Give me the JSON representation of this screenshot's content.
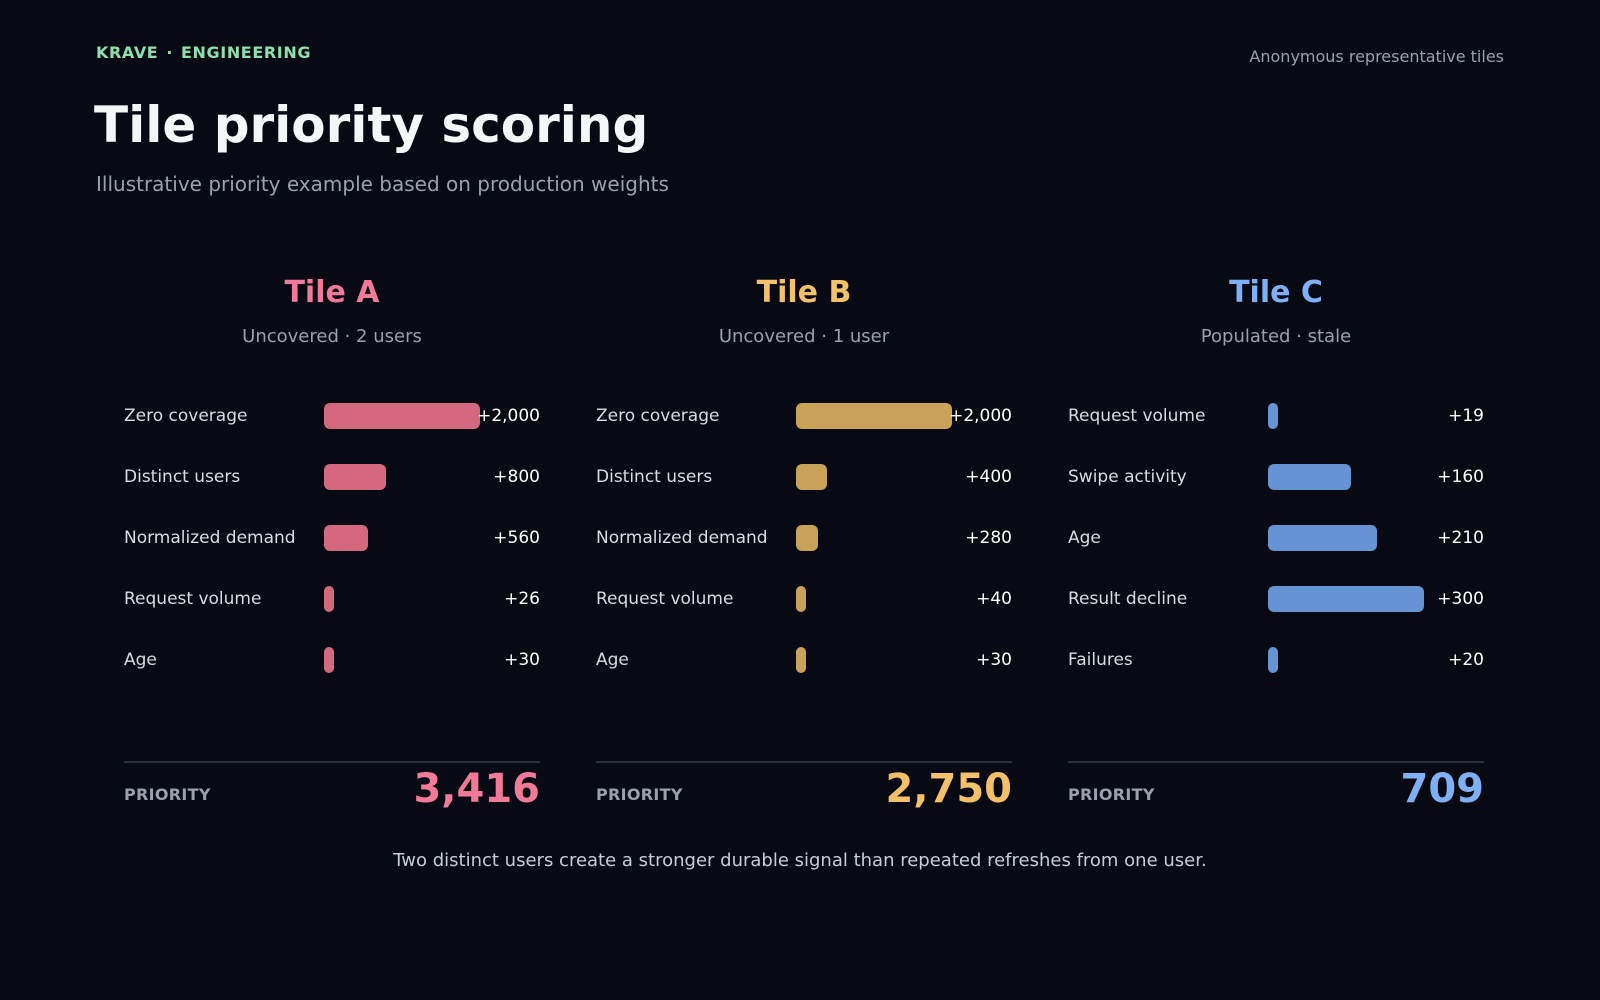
{
  "header": {
    "brand_left": "KRAVE",
    "brand_sep": "·",
    "brand_right": "ENGINEERING",
    "note": "Anonymous representative tiles",
    "title": "Tile priority scoring",
    "subtitle": "Illustrative priority example based on production weights"
  },
  "chart_data": [
    {
      "type": "bar",
      "title": "Tile A",
      "subtitle": "Uncovered · 2 users",
      "color": "#f27a99",
      "bar_color": "#d4687f",
      "categories": [
        "Zero coverage",
        "Distinct users",
        "Normalized demand",
        "Request volume",
        "Age"
      ],
      "values": [
        2000,
        800,
        560,
        26,
        30
      ],
      "value_labels": [
        "+2,000",
        "+800",
        "+560",
        "+26",
        "+30"
      ],
      "xlim": [
        0,
        2000
      ],
      "priority_label": "PRIORITY",
      "priority": "3,416"
    },
    {
      "type": "bar",
      "title": "Tile B",
      "subtitle": "Uncovered · 1 user",
      "color": "#f5c06a",
      "bar_color": "#c9a157",
      "categories": [
        "Zero coverage",
        "Distinct users",
        "Normalized demand",
        "Request volume",
        "Age"
      ],
      "values": [
        2000,
        400,
        280,
        40,
        30
      ],
      "value_labels": [
        "+2,000",
        "+400",
        "+280",
        "+40",
        "+30"
      ],
      "xlim": [
        0,
        2000
      ],
      "priority_label": "PRIORITY",
      "priority": "2,750"
    },
    {
      "type": "bar",
      "title": "Tile C",
      "subtitle": "Populated · stale",
      "color": "#7fb0f5",
      "bar_color": "#6693d4",
      "categories": [
        "Request volume",
        "Swipe activity",
        "Age",
        "Result decline",
        "Failures"
      ],
      "values": [
        19,
        160,
        210,
        300,
        20
      ],
      "value_labels": [
        "+19",
        "+160",
        "+210",
        "+300",
        "+20"
      ],
      "xlim": [
        0,
        300
      ],
      "priority_label": "PRIORITY",
      "priority": "709"
    }
  ],
  "footer": "Two distinct users create a stronger durable signal than repeated refreshes from one user."
}
